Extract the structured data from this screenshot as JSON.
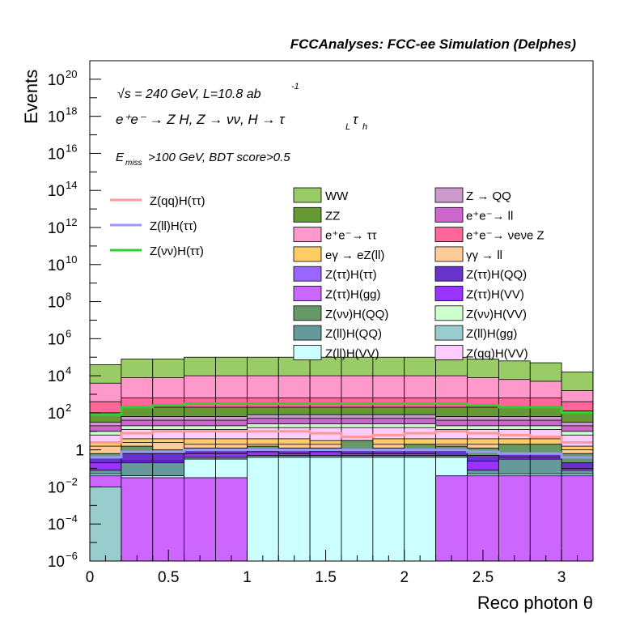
{
  "chart_data": {
    "type": "area",
    "title": "FCCAnalyses: FCC-ee Simulation (Delphes)",
    "xlabel": "Reco photon θ",
    "ylabel": "Events",
    "xlim": [
      0,
      3.2
    ],
    "ylim_exponents": [
      -6,
      21
    ],
    "ylog": true,
    "x_ticks": [
      "0",
      "0.5",
      "1",
      "1.5",
      "2",
      "2.5",
      "3"
    ],
    "y_ticks": [
      {
        "base": "10",
        "exp": "−6",
        "val": -6
      },
      {
        "base": "10",
        "exp": "−4",
        "val": -4
      },
      {
        "base": "10",
        "exp": "−2",
        "val": -2
      },
      {
        "base": "1",
        "exp": "",
        "val": 0
      },
      {
        "base": "10",
        "exp": "2",
        "val": 2
      },
      {
        "base": "10",
        "exp": "4",
        "val": 4
      },
      {
        "base": "10",
        "exp": "6",
        "val": 6
      },
      {
        "base": "10",
        "exp": "8",
        "val": 8
      },
      {
        "base": "10",
        "exp": "10",
        "val": 10
      },
      {
        "base": "10",
        "exp": "12",
        "val": 12
      },
      {
        "base": "10",
        "exp": "14",
        "val": 14
      },
      {
        "base": "10",
        "exp": "16",
        "val": 16
      },
      {
        "base": "10",
        "exp": "18",
        "val": 18
      },
      {
        "base": "10",
        "exp": "20",
        "val": 20
      }
    ],
    "annotations": {
      "energy_line": "√s = 240 GeV, L=10.8 ab",
      "energy_sup": "-1",
      "process_line": "e⁺e⁻ → Z H, Z → νν, H → τ",
      "process_sub1": "L",
      "process_mid": "τ",
      "process_sub2": "h",
      "cut_prefix": "E",
      "cut_sub": "miss",
      "cut_text": ">100 GeV, BDT score>0.5"
    },
    "bin_edges": [
      0,
      0.2,
      0.4,
      0.6,
      0.8,
      1.0,
      1.2,
      1.4,
      1.6,
      1.8,
      2.0,
      2.2,
      2.4,
      2.6,
      2.8,
      3.0,
      3.2
    ],
    "stack_log10_tops": [
      {
        "name": "Z(ll)H(gg)",
        "color": "#99cccc",
        "values": [
          -2.0,
          -6.5,
          -6.5,
          -6.5,
          -6.5,
          -6.5,
          -6.5,
          -6.5,
          -6.5,
          -6.5,
          -6.5,
          -6.5,
          -6.5,
          -6.5,
          -6.5,
          -6.5
        ]
      },
      {
        "name": "Z(ττ)H(gg)",
        "color": "#cc66ff",
        "values": [
          -1.4,
          -1.5,
          -1.5,
          -1.5,
          -1.5,
          -6.5,
          -6.5,
          -6.5,
          -6.5,
          -6.5,
          -6.5,
          -1.4,
          -1.4,
          -1.4,
          -1.4,
          -1.4
        ]
      },
      {
        "name": "Z(ll)H(VV)",
        "color": "#ccffff",
        "values": [
          -1.3,
          -1.4,
          -1.4,
          -0.5,
          -0.5,
          -0.4,
          -0.4,
          -0.4,
          -0.4,
          -0.4,
          -0.4,
          -0.4,
          -1.3,
          -1.3,
          -1.3,
          -1.3
        ]
      },
      {
        "name": "Z(ll)H(QQ)",
        "color": "#669999",
        "values": [
          -1.1,
          -0.7,
          -0.7,
          -0.4,
          -0.4,
          -0.3,
          -0.3,
          -0.3,
          -0.3,
          -0.3,
          -0.3,
          -0.3,
          -1.1,
          -0.5,
          -0.5,
          -1.1
        ]
      },
      {
        "name": "Z(ττ)H(VV)",
        "color": "#9933ff",
        "values": [
          -0.7,
          -0.6,
          -0.6,
          -0.2,
          -0.2,
          -0.1,
          -0.2,
          -0.1,
          -0.2,
          -0.2,
          -0.2,
          -0.3,
          -0.6,
          -0.4,
          -0.4,
          -1.0
        ]
      },
      {
        "name": "Z(ττ)H(QQ)",
        "color": "#6633cc",
        "values": [
          -0.4,
          -0.2,
          -0.2,
          0.0,
          0.0,
          0.0,
          0.0,
          0.0,
          0.0,
          0.0,
          0.0,
          0.0,
          -0.3,
          -0.2,
          -0.2,
          -0.7
        ]
      },
      {
        "name": "Z(νν)H(QQ)",
        "color": "#669966",
        "values": [
          -0.2,
          0.2,
          0.0,
          0.1,
          0.1,
          0.2,
          0.1,
          0.1,
          0.5,
          0.1,
          0.3,
          0.2,
          0.1,
          0.3,
          0.3,
          -0.2
        ]
      },
      {
        "name": "γγ → ll",
        "color": "#ffcc99",
        "values": [
          0.2,
          0.4,
          0.4,
          0.3,
          0.3,
          0.3,
          0.3,
          0.3,
          0.3,
          0.3,
          0.3,
          0.3,
          0.3,
          0.3,
          0.3,
          0.0
        ]
      },
      {
        "name": "eγ → eZ(ll)",
        "color": "#ffcc66",
        "values": [
          0.4,
          0.6,
          0.6,
          0.6,
          0.6,
          0.6,
          0.6,
          0.5,
          0.5,
          0.6,
          0.6,
          0.6,
          0.6,
          0.6,
          0.6,
          0.2
        ]
      },
      {
        "name": "Z(qq)H(VV)",
        "color": "#ffccff",
        "values": [
          0.8,
          1.1,
          1.1,
          1.1,
          1.1,
          1.2,
          1.2,
          1.2,
          1.2,
          1.2,
          1.2,
          1.1,
          1.1,
          1.1,
          1.1,
          0.8
        ]
      },
      {
        "name": "Z(νν)H(VV)",
        "color": "#ccffcc",
        "values": [
          1.0,
          1.3,
          1.3,
          1.3,
          1.3,
          1.4,
          1.4,
          1.4,
          1.4,
          1.4,
          1.4,
          1.3,
          1.3,
          1.3,
          1.3,
          1.0
        ]
      },
      {
        "name": "e⁺e⁻ → ll",
        "color": "#cc66cc",
        "values": [
          1.3,
          1.6,
          1.6,
          1.6,
          1.6,
          1.7,
          1.7,
          1.7,
          1.7,
          1.7,
          1.7,
          1.6,
          1.6,
          1.6,
          1.6,
          1.3
        ]
      },
      {
        "name": "Z → QQ",
        "color": "#cc99cc",
        "values": [
          1.5,
          1.8,
          1.8,
          1.8,
          1.8,
          1.9,
          1.9,
          1.9,
          1.9,
          1.9,
          1.9,
          1.8,
          1.8,
          1.8,
          1.8,
          1.5
        ]
      },
      {
        "name": "ZZ",
        "color": "#669933",
        "values": [
          2.0,
          2.3,
          2.3,
          2.3,
          2.3,
          2.3,
          2.3,
          2.3,
          2.3,
          2.3,
          2.3,
          2.3,
          2.3,
          2.3,
          2.3,
          2.1
        ]
      },
      {
        "name": "e⁺e⁻ → νeνe Z",
        "color": "#ff6699",
        "values": [
          2.6,
          2.8,
          2.8,
          2.8,
          2.8,
          2.8,
          2.8,
          2.8,
          2.8,
          2.8,
          2.8,
          2.8,
          2.8,
          2.8,
          2.8,
          2.6
        ]
      },
      {
        "name": "e⁺e⁻ → ττ",
        "color": "#ff99cc",
        "values": [
          3.6,
          3.9,
          3.9,
          4.0,
          4.0,
          4.0,
          4.0,
          4.0,
          4.0,
          4.0,
          4.0,
          4.0,
          3.9,
          3.8,
          3.7,
          3.2
        ]
      },
      {
        "name": "WW",
        "color": "#99cc66",
        "values": [
          4.6,
          4.9,
          4.9,
          5.0,
          5.0,
          5.0,
          5.0,
          5.0,
          5.0,
          5.0,
          5.0,
          5.0,
          4.9,
          4.8,
          4.7,
          4.2
        ]
      }
    ],
    "signal_log10": [
      {
        "name": "Z(qq)H(ττ)",
        "color": "#ff9999",
        "values": [
          0.4,
          0.9,
          1.0,
          1.0,
          1.0,
          1.0,
          1.0,
          0.9,
          0.7,
          0.8,
          0.9,
          1.0,
          0.9,
          0.8,
          0.7,
          0.4
        ]
      },
      {
        "name": "Z(ll)H(ττ)",
        "color": "#9999ff",
        "values": [
          -0.4,
          -0.1,
          -0.1,
          0.0,
          0.0,
          0.0,
          0.0,
          0.0,
          0.0,
          0.0,
          0.0,
          0.0,
          -0.1,
          -0.2,
          -0.2,
          -0.4
        ]
      },
      {
        "name": "Z(νν)H(ττ)",
        "color": "#33cc33",
        "values": [
          1.9,
          2.3,
          2.4,
          2.5,
          2.5,
          2.5,
          2.5,
          2.5,
          2.5,
          2.5,
          2.5,
          2.5,
          2.4,
          2.3,
          2.3,
          2.0
        ]
      }
    ],
    "legend_signal": [
      "Z(qq)H(ττ)",
      "Z(ll)H(ττ)",
      "Z(νν)H(ττ)"
    ],
    "legend_bkg_left": [
      {
        "label": "WW",
        "color": "#99cc66"
      },
      {
        "label": "ZZ",
        "color": "#669933"
      },
      {
        "label": "e⁺e⁻→ ττ",
        "color": "#ff99cc"
      },
      {
        "label": "eγ → eZ(ll)",
        "color": "#ffcc66"
      },
      {
        "label": "Z(ττ)H(ττ)",
        "color": "#9966ff"
      },
      {
        "label": "Z(ττ)H(gg)",
        "color": "#cc66ff"
      },
      {
        "label": "Z(νν)H(QQ)",
        "color": "#669966"
      },
      {
        "label": "Z(ll)H(QQ)",
        "color": "#669999"
      },
      {
        "label": "Z(ll)H(VV)",
        "color": "#ccffff"
      }
    ],
    "legend_bkg_right": [
      {
        "label": "Z → QQ",
        "color": "#cc99cc"
      },
      {
        "label": "e⁺e⁻→ ll",
        "color": "#cc66cc"
      },
      {
        "label": "e⁺e⁻→ νeνe Z",
        "color": "#ff6699"
      },
      {
        "label": "γγ → ll",
        "color": "#ffcc99"
      },
      {
        "label": "Z(ττ)H(QQ)",
        "color": "#6633cc"
      },
      {
        "label": "Z(ττ)H(VV)",
        "color": "#9933ff"
      },
      {
        "label": "Z(νν)H(VV)",
        "color": "#ccffcc"
      },
      {
        "label": "Z(ll)H(gg)",
        "color": "#99cccc"
      },
      {
        "label": "Z(qq)H(VV)",
        "color": "#ffccff"
      }
    ]
  }
}
